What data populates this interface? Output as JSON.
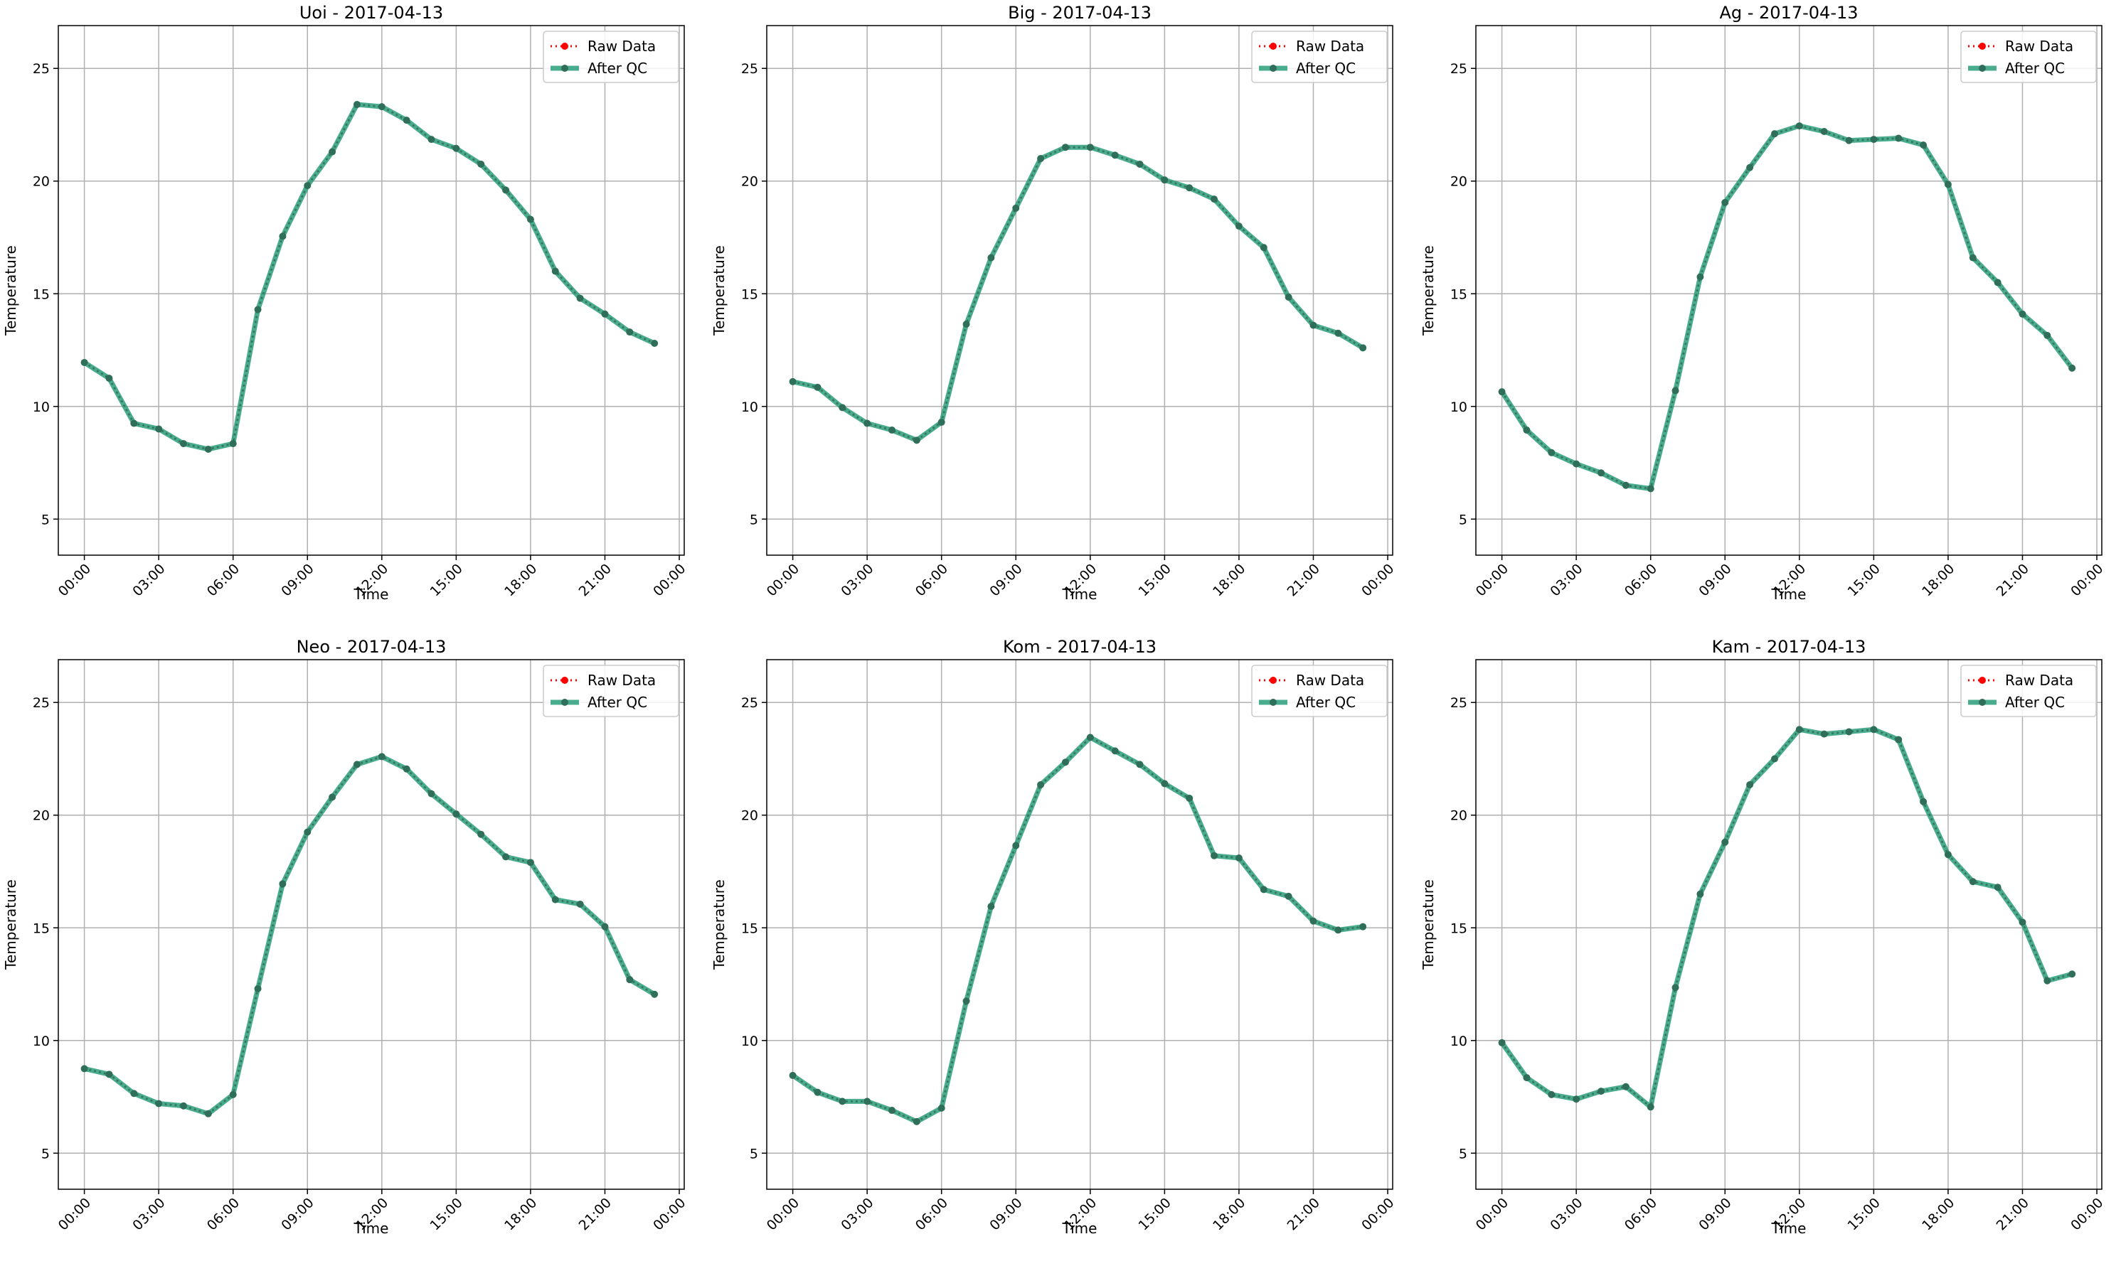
{
  "colors": {
    "raw": "#ff0000",
    "after_qc": "#2a9d7a",
    "after_qc_line": "rgba(42,157,122,0.85)",
    "marker_dark": "#2f6f5a",
    "grid": "#b0b0b0"
  },
  "legend": {
    "raw_label": "Raw Data",
    "qc_label": "After QC"
  },
  "chart_data": [
    {
      "type": "line",
      "title": "Uoi - 2017-04-13",
      "xlabel": "Time",
      "ylabel": "Temperature",
      "xticks": [
        "00:00",
        "03:00",
        "06:00",
        "09:00",
        "12:00",
        "15:00",
        "18:00",
        "21:00",
        "00:00"
      ],
      "yticks": [
        5,
        10,
        15,
        20,
        25
      ],
      "ylim": [
        3.4,
        26.9
      ],
      "x_hours": [
        0,
        1,
        2,
        3,
        4,
        5,
        6,
        7,
        8,
        9,
        10,
        11,
        12,
        13,
        14,
        15,
        16,
        17,
        18,
        19,
        20,
        21,
        22,
        23
      ],
      "series": [
        {
          "name": "Raw Data",
          "values": [
            11.95,
            11.25,
            9.25,
            9.0,
            8.35,
            8.1,
            8.35,
            14.3,
            17.55,
            19.8,
            21.3,
            23.4,
            23.3,
            22.7,
            21.85,
            21.45,
            20.75,
            19.6,
            18.3,
            16.0,
            14.8,
            14.1,
            13.3,
            12.8
          ]
        },
        {
          "name": "After QC",
          "values": [
            11.95,
            11.25,
            9.25,
            9.0,
            8.35,
            8.1,
            8.35,
            14.3,
            17.55,
            19.8,
            21.3,
            23.4,
            23.3,
            22.7,
            21.85,
            21.45,
            20.75,
            19.6,
            18.3,
            16.0,
            14.8,
            14.1,
            13.3,
            12.8
          ]
        }
      ],
      "legend_position": "upper right",
      "grid": true
    },
    {
      "type": "line",
      "title": "Big - 2017-04-13",
      "xlabel": "Time",
      "ylabel": "Temperature",
      "xticks": [
        "00:00",
        "03:00",
        "06:00",
        "09:00",
        "12:00",
        "15:00",
        "18:00",
        "21:00",
        "00:00"
      ],
      "yticks": [
        5,
        10,
        15,
        20,
        25
      ],
      "ylim": [
        3.4,
        26.9
      ],
      "x_hours": [
        0,
        1,
        2,
        3,
        4,
        5,
        6,
        7,
        8,
        9,
        10,
        11,
        12,
        13,
        14,
        15,
        16,
        17,
        18,
        19,
        20,
        21,
        22,
        23
      ],
      "series": [
        {
          "name": "Raw Data",
          "values": [
            11.1,
            10.85,
            9.95,
            9.25,
            8.95,
            8.5,
            9.3,
            13.65,
            16.6,
            18.8,
            21.0,
            21.5,
            21.5,
            21.15,
            20.75,
            20.05,
            19.7,
            19.2,
            18.0,
            17.05,
            14.85,
            13.6,
            13.25,
            12.6
          ]
        },
        {
          "name": "After QC",
          "values": [
            11.1,
            10.85,
            9.95,
            9.25,
            8.95,
            8.5,
            9.3,
            13.65,
            16.6,
            18.8,
            21.0,
            21.5,
            21.5,
            21.15,
            20.75,
            20.05,
            19.7,
            19.2,
            18.0,
            17.05,
            14.85,
            13.6,
            13.25,
            12.6
          ]
        }
      ],
      "legend_position": "upper right",
      "grid": true
    },
    {
      "type": "line",
      "title": "Ag - 2017-04-13",
      "xlabel": "Time",
      "ylabel": "Temperature",
      "xticks": [
        "00:00",
        "03:00",
        "06:00",
        "09:00",
        "12:00",
        "15:00",
        "18:00",
        "21:00",
        "00:00"
      ],
      "yticks": [
        5,
        10,
        15,
        20,
        25
      ],
      "ylim": [
        3.4,
        26.9
      ],
      "x_hours": [
        0,
        1,
        2,
        3,
        4,
        5,
        6,
        7,
        8,
        9,
        10,
        11,
        12,
        13,
        14,
        15,
        16,
        17,
        18,
        19,
        20,
        21,
        22,
        23
      ],
      "series": [
        {
          "name": "Raw Data",
          "values": [
            10.65,
            8.95,
            7.95,
            7.45,
            7.05,
            6.5,
            6.35,
            10.7,
            15.75,
            19.05,
            20.6,
            22.1,
            22.45,
            22.2,
            21.8,
            21.85,
            21.9,
            21.6,
            19.85,
            16.6,
            15.5,
            14.1,
            13.15,
            11.7
          ]
        },
        {
          "name": "After QC",
          "values": [
            10.65,
            8.95,
            7.95,
            7.45,
            7.05,
            6.5,
            6.35,
            10.7,
            15.75,
            19.05,
            20.6,
            22.1,
            22.45,
            22.2,
            21.8,
            21.85,
            21.9,
            21.6,
            19.85,
            16.6,
            15.5,
            14.1,
            13.15,
            11.7
          ]
        }
      ],
      "legend_position": "upper right",
      "grid": true
    },
    {
      "type": "line",
      "title": "Neo - 2017-04-13",
      "xlabel": "Time",
      "ylabel": "Temperature",
      "xticks": [
        "00:00",
        "03:00",
        "06:00",
        "09:00",
        "12:00",
        "15:00",
        "18:00",
        "21:00",
        "00:00"
      ],
      "yticks": [
        5,
        10,
        15,
        20,
        25
      ],
      "ylim": [
        3.4,
        26.9
      ],
      "x_hours": [
        0,
        1,
        2,
        3,
        4,
        5,
        6,
        7,
        8,
        9,
        10,
        11,
        12,
        13,
        14,
        15,
        16,
        17,
        18,
        19,
        20,
        21,
        22,
        23
      ],
      "series": [
        {
          "name": "Raw Data",
          "values": [
            8.75,
            8.5,
            7.65,
            7.2,
            7.1,
            6.75,
            7.6,
            12.3,
            16.95,
            19.25,
            20.8,
            22.25,
            22.6,
            22.05,
            20.95,
            20.05,
            19.15,
            18.15,
            17.9,
            16.25,
            16.05,
            15.05,
            12.7,
            12.05
          ]
        },
        {
          "name": "After QC",
          "values": [
            8.75,
            8.5,
            7.65,
            7.2,
            7.1,
            6.75,
            7.6,
            12.3,
            16.95,
            19.25,
            20.8,
            22.25,
            22.6,
            22.05,
            20.95,
            20.05,
            19.15,
            18.15,
            17.9,
            16.25,
            16.05,
            15.05,
            12.7,
            12.05
          ]
        }
      ],
      "legend_position": "upper right",
      "grid": true
    },
    {
      "type": "line",
      "title": "Kom - 2017-04-13",
      "xlabel": "Time",
      "ylabel": "Temperature",
      "xticks": [
        "00:00",
        "03:00",
        "06:00",
        "09:00",
        "12:00",
        "15:00",
        "18:00",
        "21:00",
        "00:00"
      ],
      "yticks": [
        5,
        10,
        15,
        20,
        25
      ],
      "ylim": [
        3.4,
        26.9
      ],
      "x_hours": [
        0,
        1,
        2,
        3,
        4,
        5,
        6,
        7,
        8,
        9,
        10,
        11,
        12,
        13,
        14,
        15,
        16,
        17,
        18,
        19,
        20,
        21,
        22,
        23
      ],
      "series": [
        {
          "name": "Raw Data",
          "values": [
            8.45,
            7.7,
            7.3,
            7.3,
            6.9,
            6.4,
            7.0,
            11.75,
            15.95,
            18.65,
            21.35,
            22.35,
            23.45,
            22.85,
            22.25,
            21.4,
            20.75,
            18.2,
            18.1,
            16.7,
            16.4,
            15.3,
            14.9,
            15.05
          ]
        },
        {
          "name": "After QC",
          "values": [
            8.45,
            7.7,
            7.3,
            7.3,
            6.9,
            6.4,
            7.0,
            11.75,
            15.95,
            18.65,
            21.35,
            22.35,
            23.45,
            22.85,
            22.25,
            21.4,
            20.75,
            18.2,
            18.1,
            16.7,
            16.4,
            15.3,
            14.9,
            15.05
          ]
        }
      ],
      "legend_position": "upper right",
      "grid": true
    },
    {
      "type": "line",
      "title": "Kam - 2017-04-13",
      "xlabel": "Time",
      "ylabel": "Temperature",
      "xticks": [
        "00:00",
        "03:00",
        "06:00",
        "09:00",
        "12:00",
        "15:00",
        "18:00",
        "21:00",
        "00:00"
      ],
      "yticks": [
        5,
        10,
        15,
        20,
        25
      ],
      "ylim": [
        3.4,
        26.9
      ],
      "x_hours": [
        0,
        1,
        2,
        3,
        4,
        5,
        6,
        7,
        8,
        9,
        10,
        11,
        12,
        13,
        14,
        15,
        16,
        17,
        18,
        19,
        20,
        21,
        22,
        23
      ],
      "series": [
        {
          "name": "Raw Data",
          "values": [
            9.9,
            8.35,
            7.6,
            7.4,
            7.75,
            7.95,
            7.05,
            12.35,
            16.5,
            18.8,
            21.35,
            22.5,
            23.8,
            23.6,
            23.7,
            23.8,
            23.35,
            20.6,
            18.25,
            17.05,
            16.8,
            15.25,
            12.65,
            12.95
          ]
        },
        {
          "name": "After QC",
          "values": [
            9.9,
            8.35,
            7.6,
            7.4,
            7.75,
            7.95,
            7.05,
            12.35,
            16.5,
            18.8,
            21.35,
            22.5,
            23.8,
            23.6,
            23.7,
            23.8,
            23.35,
            20.6,
            18.25,
            17.05,
            16.8,
            15.25,
            12.65,
            12.95
          ]
        }
      ],
      "legend_position": "upper right",
      "grid": true
    }
  ]
}
